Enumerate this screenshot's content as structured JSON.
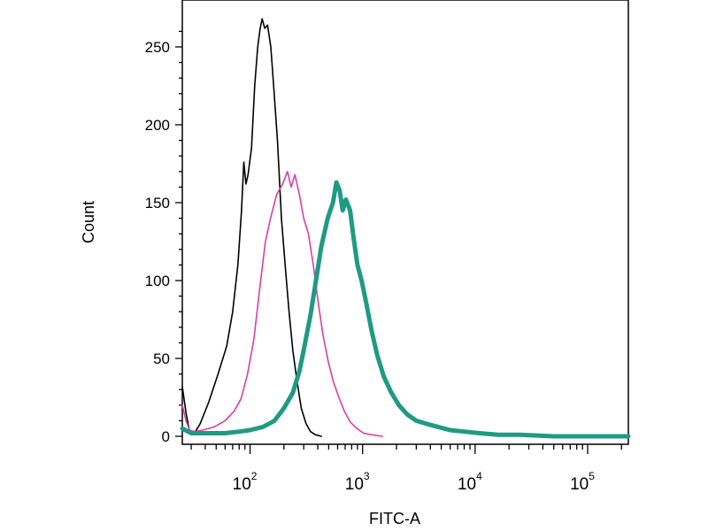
{
  "chart_data": {
    "type": "line",
    "title": "",
    "xlabel": "FITC-A",
    "ylabel": "Count",
    "x_scale": "log",
    "xlim": [
      25,
      230000
    ],
    "ylim": [
      0,
      270
    ],
    "y_ticks": [
      0,
      50,
      100,
      150,
      200,
      250
    ],
    "x_ticks": [
      {
        "value": 100,
        "base": "10",
        "exp": "2"
      },
      {
        "value": 1000,
        "base": "10",
        "exp": "3"
      },
      {
        "value": 10000,
        "base": "10",
        "exp": "4"
      },
      {
        "value": 100000,
        "base": "10",
        "exp": "5"
      }
    ],
    "grid": false,
    "legend": "none",
    "series": [
      {
        "color": "#000000",
        "stroke": "thin",
        "points": [
          [
            25,
            32
          ],
          [
            27,
            15
          ],
          [
            29,
            3
          ],
          [
            32,
            2
          ],
          [
            36,
            8
          ],
          [
            43,
            22
          ],
          [
            52,
            40
          ],
          [
            62,
            58
          ],
          [
            70,
            80
          ],
          [
            78,
            110
          ],
          [
            84,
            145
          ],
          [
            88,
            176
          ],
          [
            92,
            162
          ],
          [
            96,
            168
          ],
          [
            103,
            185
          ],
          [
            110,
            225
          ],
          [
            117,
            250
          ],
          [
            123,
            262
          ],
          [
            128,
            268
          ],
          [
            135,
            262
          ],
          [
            143,
            264
          ],
          [
            153,
            250
          ],
          [
            162,
            225
          ],
          [
            175,
            190
          ],
          [
            190,
            140
          ],
          [
            205,
            110
          ],
          [
            222,
            80
          ],
          [
            240,
            55
          ],
          [
            262,
            35
          ],
          [
            285,
            18
          ],
          [
            315,
            8
          ],
          [
            345,
            3
          ],
          [
            380,
            1
          ],
          [
            430,
            0
          ]
        ]
      },
      {
        "color": "#d63fa8",
        "stroke": "thin",
        "points": [
          [
            25,
            20
          ],
          [
            27,
            10
          ],
          [
            29,
            4
          ],
          [
            32,
            3
          ],
          [
            38,
            4
          ],
          [
            48,
            6
          ],
          [
            60,
            10
          ],
          [
            72,
            16
          ],
          [
            83,
            24
          ],
          [
            95,
            40
          ],
          [
            108,
            62
          ],
          [
            122,
            95
          ],
          [
            137,
            125
          ],
          [
            152,
            140
          ],
          [
            172,
            155
          ],
          [
            195,
            162
          ],
          [
            215,
            170
          ],
          [
            232,
            160
          ],
          [
            250,
            168
          ],
          [
            275,
            155
          ],
          [
            300,
            140
          ],
          [
            330,
            130
          ],
          [
            365,
            110
          ],
          [
            405,
            85
          ],
          [
            445,
            65
          ],
          [
            495,
            48
          ],
          [
            550,
            35
          ],
          [
            615,
            25
          ],
          [
            690,
            16
          ],
          [
            780,
            9
          ],
          [
            890,
            5
          ],
          [
            1020,
            2
          ],
          [
            1200,
            1
          ],
          [
            1500,
            0
          ]
        ]
      },
      {
        "color": "#1f9a83",
        "stroke": "thick",
        "points": [
          [
            25,
            5
          ],
          [
            30,
            2
          ],
          [
            40,
            2
          ],
          [
            60,
            2
          ],
          [
            80,
            3
          ],
          [
            100,
            4
          ],
          [
            130,
            6
          ],
          [
            165,
            10
          ],
          [
            200,
            18
          ],
          [
            240,
            28
          ],
          [
            275,
            42
          ],
          [
            305,
            58
          ],
          [
            345,
            78
          ],
          [
            385,
            100
          ],
          [
            430,
            122
          ],
          [
            490,
            140
          ],
          [
            545,
            150
          ],
          [
            585,
            163
          ],
          [
            625,
            158
          ],
          [
            665,
            145
          ],
          [
            710,
            152
          ],
          [
            775,
            145
          ],
          [
            830,
            128
          ],
          [
            900,
            110
          ],
          [
            980,
            100
          ],
          [
            1080,
            85
          ],
          [
            1200,
            68
          ],
          [
            1350,
            52
          ],
          [
            1550,
            38
          ],
          [
            1800,
            28
          ],
          [
            2100,
            20
          ],
          [
            2500,
            14
          ],
          [
            3000,
            10
          ],
          [
            3700,
            8
          ],
          [
            4700,
            6
          ],
          [
            6000,
            4
          ],
          [
            8000,
            3
          ],
          [
            11000,
            2
          ],
          [
            16000,
            1
          ],
          [
            25000,
            1
          ],
          [
            50000,
            0
          ],
          [
            230000,
            0
          ]
        ]
      }
    ]
  }
}
